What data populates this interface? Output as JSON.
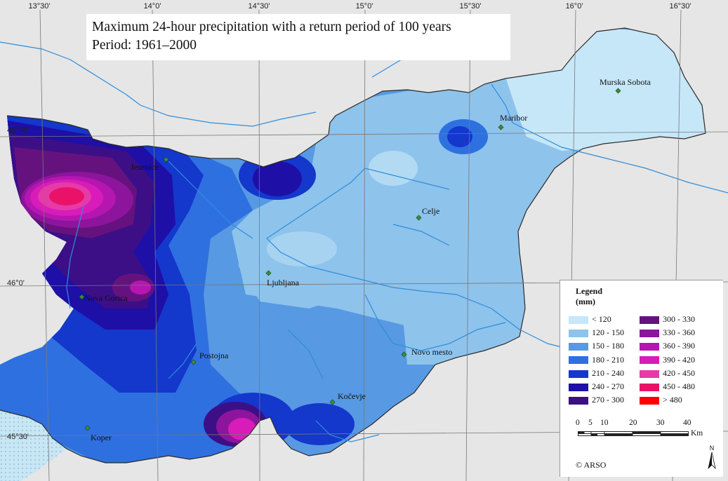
{
  "title": {
    "line1": "Maximum 24-hour precipitation with a return period of 100 years",
    "line2": "Period: 1961–2000"
  },
  "graticule": {
    "longitudes": [
      "13°30'",
      "14°0'",
      "14°30'",
      "15°0'",
      "15°30'",
      "16°0'",
      "16°30'"
    ],
    "latitudes": [
      "46°30'",
      "46°0'",
      "45°30'"
    ]
  },
  "cities": [
    {
      "name": "Murska Sobota"
    },
    {
      "name": "Maribor"
    },
    {
      "name": "Jesenice"
    },
    {
      "name": "Celje"
    },
    {
      "name": "Ljubljana"
    },
    {
      "name": "Nova Gorica"
    },
    {
      "name": "Novo mesto"
    },
    {
      "name": "Postojna"
    },
    {
      "name": "Kočevje"
    },
    {
      "name": "Koper"
    }
  ],
  "legend": {
    "title": "Legend",
    "unit": "(mm)",
    "classes": [
      {
        "label": "< 120",
        "color": "#c6e7f8"
      },
      {
        "label": "120 - 150",
        "color": "#8ec3ec"
      },
      {
        "label": "150 - 180",
        "color": "#5799e2"
      },
      {
        "label": "180 - 210",
        "color": "#2f70e0"
      },
      {
        "label": "210 - 240",
        "color": "#1437cc"
      },
      {
        "label": "240 - 270",
        "color": "#1e0fa6"
      },
      {
        "label": "270 - 300",
        "color": "#3c0f86"
      },
      {
        "label": "300 - 330",
        "color": "#66127e"
      },
      {
        "label": "330 - 360",
        "color": "#8d149c"
      },
      {
        "label": "360 - 390",
        "color": "#b516b0"
      },
      {
        "label": "390 - 420",
        "color": "#d81cb9"
      },
      {
        "label": "420 - 450",
        "color": "#e63aa8"
      },
      {
        "label": "450 - 480",
        "color": "#ea1268"
      },
      {
        "label": "> 480",
        "color": "#ff0000"
      }
    ]
  },
  "scale_bar": {
    "ticks": [
      "0",
      "5",
      "10",
      "20",
      "30",
      "40"
    ],
    "unit": "Km"
  },
  "north_arrow": {
    "label": "N"
  },
  "copyright": "© ARSO",
  "colors": {
    "background": "#e6e6e6",
    "sea": "#c8e6f4",
    "river": "#2e8ddb",
    "grid": "#777777"
  }
}
